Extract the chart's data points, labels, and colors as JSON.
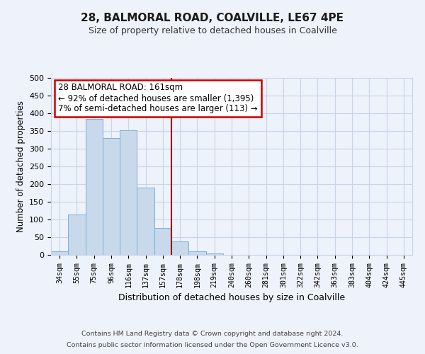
{
  "title": "28, BALMORAL ROAD, COALVILLE, LE67 4PE",
  "subtitle": "Size of property relative to detached houses in Coalville",
  "xlabel": "Distribution of detached houses by size in Coalville",
  "ylabel": "Number of detached properties",
  "bin_labels": [
    "34sqm",
    "55sqm",
    "75sqm",
    "96sqm",
    "116sqm",
    "137sqm",
    "157sqm",
    "178sqm",
    "198sqm",
    "219sqm",
    "240sqm",
    "260sqm",
    "281sqm",
    "301sqm",
    "322sqm",
    "342sqm",
    "363sqm",
    "383sqm",
    "404sqm",
    "424sqm",
    "445sqm"
  ],
  "bar_values": [
    10,
    115,
    385,
    330,
    352,
    190,
    76,
    38,
    10,
    5,
    1,
    0,
    0,
    0,
    0,
    0,
    1,
    0,
    0,
    0,
    1
  ],
  "bar_color": "#c8d9ec",
  "bar_edge_color": "#7bafd4",
  "vline_x": 6.5,
  "vline_color": "#990000",
  "ylim": [
    0,
    500
  ],
  "yticks": [
    0,
    50,
    100,
    150,
    200,
    250,
    300,
    350,
    400,
    450,
    500
  ],
  "annotation_title": "28 BALMORAL ROAD: 161sqm",
  "annotation_line1": "← 92% of detached houses are smaller (1,395)",
  "annotation_line2": "7% of semi-detached houses are larger (113) →",
  "annotation_box_color": "#ffffff",
  "annotation_box_edge": "#cc0000",
  "footer1": "Contains HM Land Registry data © Crown copyright and database right 2024.",
  "footer2": "Contains public sector information licensed under the Open Government Licence v3.0.",
  "grid_color": "#c8d4e8",
  "background_color": "#eef2fa"
}
